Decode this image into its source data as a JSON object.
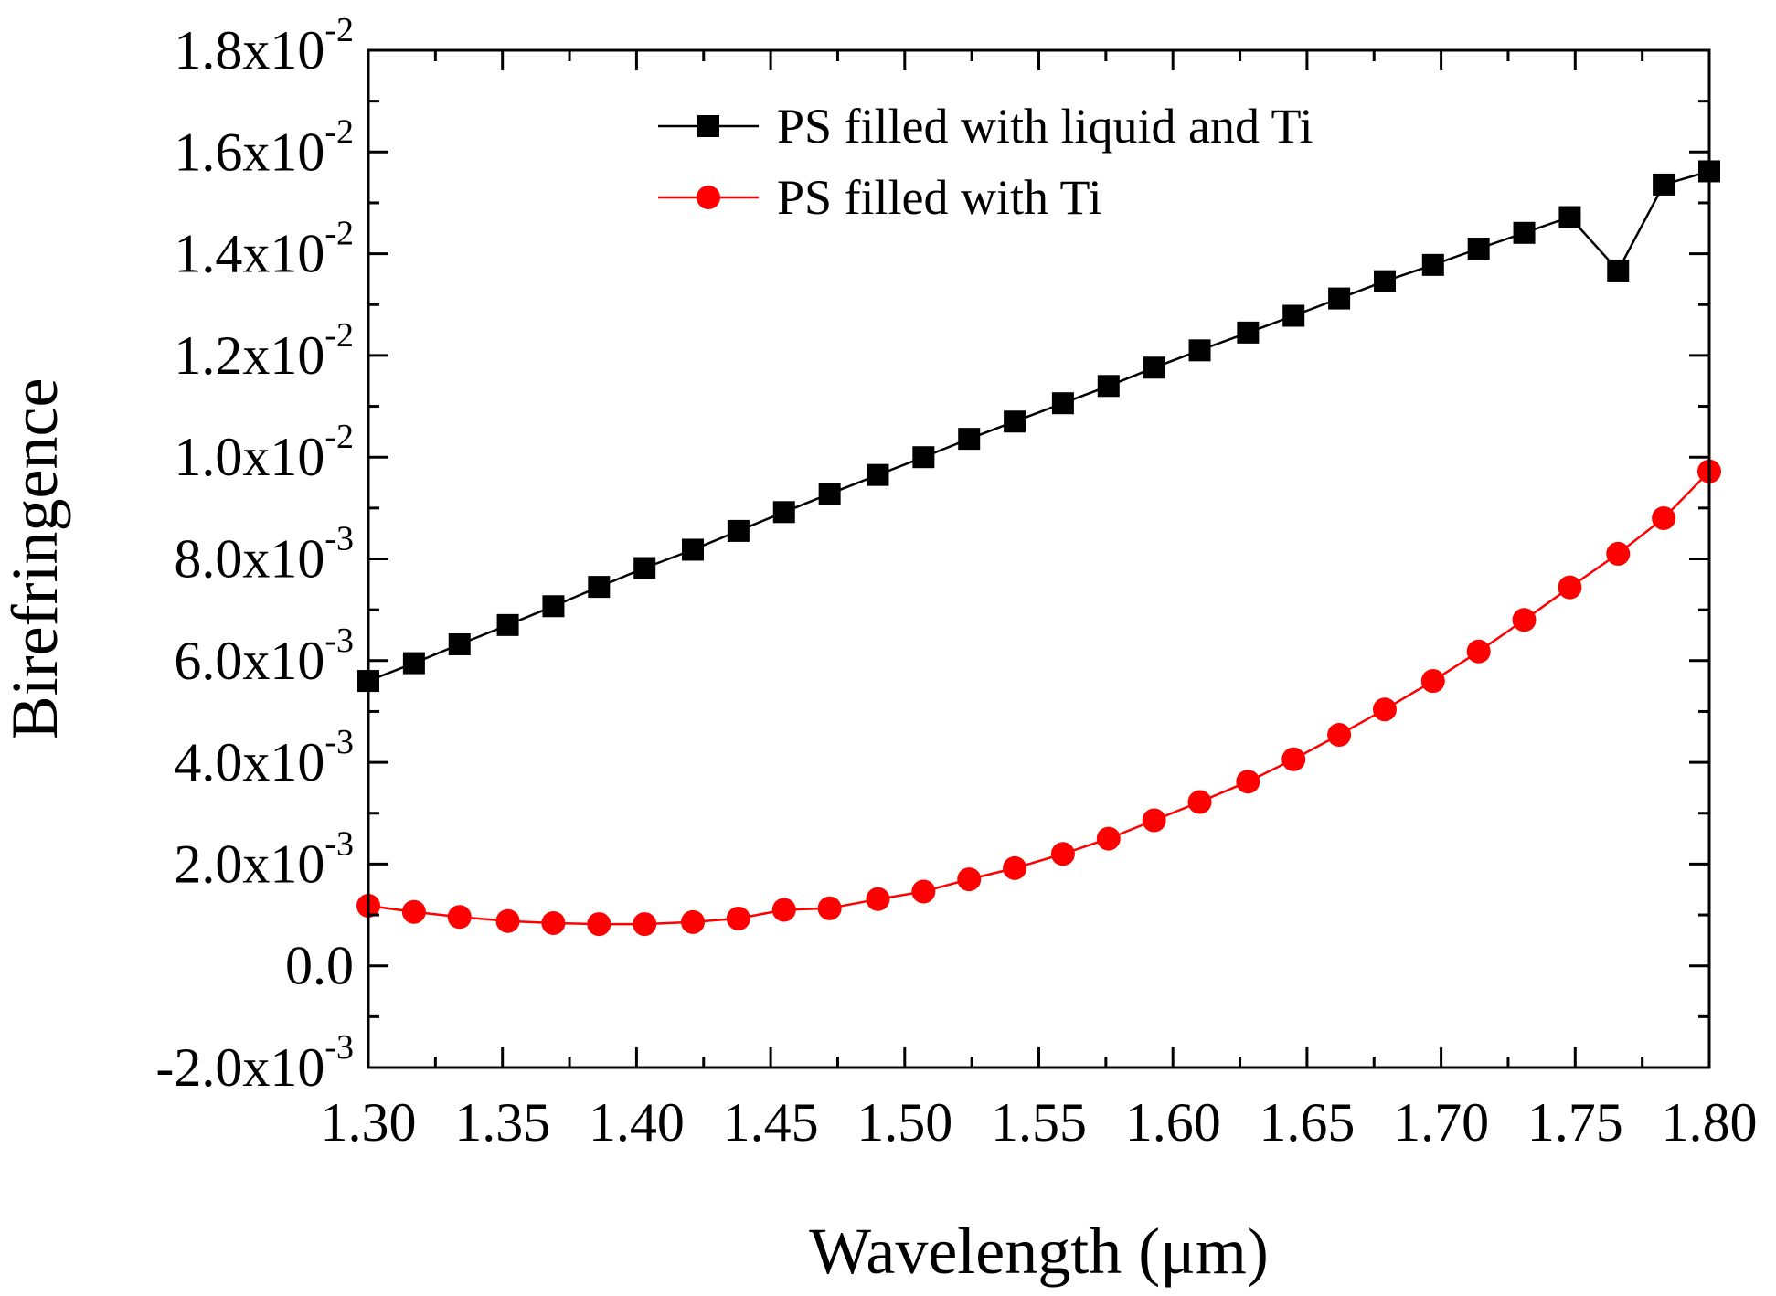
{
  "chart_data": {
    "type": "line",
    "title": "",
    "xlabel": "Wavelength (μm)",
    "ylabel": "Birefringence",
    "xlim": [
      1.3,
      1.8
    ],
    "ylim": [
      -0.002,
      0.018
    ],
    "x_ticks": [
      {
        "value": 1.3,
        "label": "1.30"
      },
      {
        "value": 1.35,
        "label": "1.35"
      },
      {
        "value": 1.4,
        "label": "1.40"
      },
      {
        "value": 1.45,
        "label": "1.45"
      },
      {
        "value": 1.5,
        "label": "1.50"
      },
      {
        "value": 1.55,
        "label": "1.55"
      },
      {
        "value": 1.6,
        "label": "1.60"
      },
      {
        "value": 1.65,
        "label": "1.65"
      },
      {
        "value": 1.7,
        "label": "1.70"
      },
      {
        "value": 1.75,
        "label": "1.75"
      },
      {
        "value": 1.8,
        "label": "1.80"
      }
    ],
    "y_ticks": [
      {
        "value": -0.002,
        "mantissa": "-2.0x10",
        "exp": "-3"
      },
      {
        "value": 0.0,
        "mantissa": "0.0",
        "exp": ""
      },
      {
        "value": 0.002,
        "mantissa": "2.0x10",
        "exp": "-3"
      },
      {
        "value": 0.004,
        "mantissa": "4.0x10",
        "exp": "-3"
      },
      {
        "value": 0.006,
        "mantissa": "6.0x10",
        "exp": "-3"
      },
      {
        "value": 0.008,
        "mantissa": "8.0x10",
        "exp": "-3"
      },
      {
        "value": 0.01,
        "mantissa": "1.0x10",
        "exp": "-2"
      },
      {
        "value": 0.012,
        "mantissa": "1.2x10",
        "exp": "-2"
      },
      {
        "value": 0.014,
        "mantissa": "1.4x10",
        "exp": "-2"
      },
      {
        "value": 0.016,
        "mantissa": "1.6x10",
        "exp": "-2"
      },
      {
        "value": 0.018,
        "mantissa": "1.8x10",
        "exp": "-2"
      }
    ],
    "grid": false,
    "legend_position": "top",
    "x": [
      1.3,
      1.317,
      1.334,
      1.352,
      1.369,
      1.386,
      1.403,
      1.421,
      1.438,
      1.455,
      1.472,
      1.49,
      1.507,
      1.524,
      1.541,
      1.559,
      1.576,
      1.593,
      1.61,
      1.628,
      1.645,
      1.662,
      1.679,
      1.697,
      1.714,
      1.731,
      1.748,
      1.766,
      1.783,
      1.8
    ],
    "series": [
      {
        "name": "PS filled with liquid and Ti",
        "color": "#000000",
        "marker": "square",
        "values": [
          0.0056,
          0.00595,
          0.00632,
          0.0067,
          0.00707,
          0.00745,
          0.00782,
          0.00818,
          0.00855,
          0.00892,
          0.00928,
          0.00965,
          0.01,
          0.01036,
          0.0107,
          0.01106,
          0.0114,
          0.01176,
          0.0121,
          0.01245,
          0.01278,
          0.01312,
          0.01346,
          0.01378,
          0.0141,
          0.01441,
          0.01472,
          0.01367,
          0.01536,
          0.01562
        ]
      },
      {
        "name": "PS filled with Ti",
        "color": "#ff0000",
        "marker": "circle",
        "values": [
          0.00118,
          0.00106,
          0.00096,
          0.00088,
          0.00084,
          0.00082,
          0.00082,
          0.00086,
          0.00093,
          0.0011,
          0.00113,
          0.00131,
          0.00146,
          0.0017,
          0.00192,
          0.0022,
          0.0025,
          0.00286,
          0.00322,
          0.00362,
          0.00406,
          0.00454,
          0.00504,
          0.0056,
          0.00618,
          0.0068,
          0.00744,
          0.0081,
          0.0088,
          0.00972
        ]
      }
    ]
  }
}
